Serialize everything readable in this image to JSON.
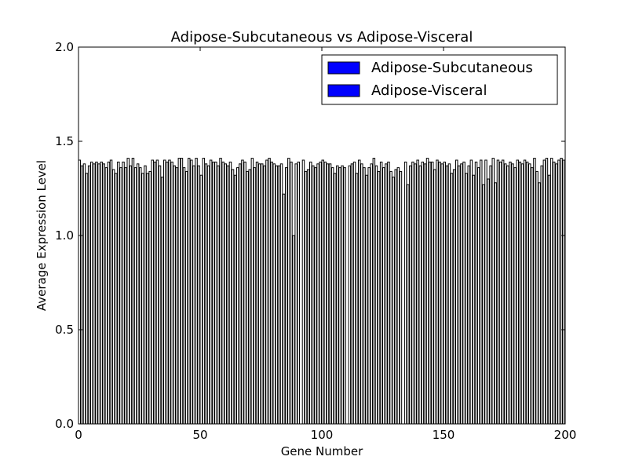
{
  "chart_data": {
    "type": "bar",
    "title": "Adipose-Subcutaneous vs Adipose-Visceral",
    "xlabel": "Gene Number",
    "ylabel": "Average Expression Level",
    "xlim": [
      0,
      200
    ],
    "ylim": [
      0,
      2.0
    ],
    "xticks": [
      "0",
      "50",
      "100",
      "150",
      "200"
    ],
    "yticks": [
      "0.0",
      "0.5",
      "1.0",
      "1.5",
      "2.0"
    ],
    "legend_position": "top-right",
    "series": [
      {
        "name": "Adipose-Subcutaneous",
        "color": "#0000ff"
      },
      {
        "name": "Adipose-Visceral",
        "color": "#0000ff"
      }
    ],
    "bar_values": [
      1.4,
      1.37,
      1.38,
      1.33,
      1.37,
      1.39,
      1.38,
      1.39,
      1.38,
      1.39,
      1.38,
      1.36,
      1.39,
      1.4,
      1.35,
      1.33,
      1.39,
      1.36,
      1.39,
      1.36,
      1.41,
      1.37,
      1.41,
      1.36,
      1.38,
      1.36,
      1.33,
      1.37,
      1.33,
      1.34,
      1.4,
      1.39,
      1.4,
      1.37,
      1.31,
      1.4,
      1.39,
      1.4,
      1.39,
      1.37,
      1.36,
      1.41,
      1.41,
      1.36,
      1.34,
      1.41,
      1.4,
      1.37,
      1.41,
      1.37,
      1.32,
      1.41,
      1.38,
      1.37,
      1.4,
      1.39,
      1.39,
      1.37,
      1.41,
      1.39,
      1.38,
      1.37,
      1.39,
      1.35,
      1.32,
      1.36,
      1.38,
      1.4,
      1.39,
      1.34,
      1.35,
      1.41,
      1.36,
      1.39,
      1.38,
      1.38,
      1.37,
      1.4,
      1.41,
      1.39,
      1.38,
      1.37,
      1.37,
      1.38,
      1.22,
      1.36,
      1.41,
      1.39,
      1.0,
      1.38,
      1.39,
      0.0,
      1.4,
      1.34,
      1.35,
      1.39,
      1.37,
      1.36,
      1.38,
      1.39,
      1.4,
      1.39,
      1.38,
      1.38,
      1.36,
      1.33,
      1.37,
      1.36,
      1.37,
      1.36,
      0.0,
      1.37,
      1.38,
      1.39,
      1.33,
      1.4,
      1.38,
      1.36,
      1.32,
      1.36,
      1.38,
      1.41,
      1.37,
      1.34,
      1.39,
      1.36,
      1.38,
      1.39,
      1.34,
      1.31,
      1.35,
      1.36,
      1.34,
      0.0,
      1.39,
      1.27,
      1.37,
      1.39,
      1.38,
      1.4,
      1.37,
      1.39,
      1.38,
      1.41,
      1.39,
      1.39,
      1.35,
      1.4,
      1.39,
      1.38,
      1.39,
      1.37,
      1.38,
      1.33,
      1.35,
      1.4,
      1.37,
      1.38,
      1.39,
      1.33,
      1.37,
      1.4,
      1.32,
      1.39,
      1.36,
      1.4,
      1.27,
      1.4,
      1.3,
      1.37,
      1.41,
      1.28,
      1.4,
      1.39,
      1.4,
      1.38,
      1.37,
      1.39,
      1.38,
      1.36,
      1.4,
      1.39,
      1.38,
      1.4,
      1.39,
      1.38,
      1.36,
      1.41,
      1.34,
      1.28,
      1.37,
      1.4,
      1.41,
      1.32,
      1.41,
      1.39,
      1.38,
      1.4,
      1.41,
      1.4
    ]
  }
}
